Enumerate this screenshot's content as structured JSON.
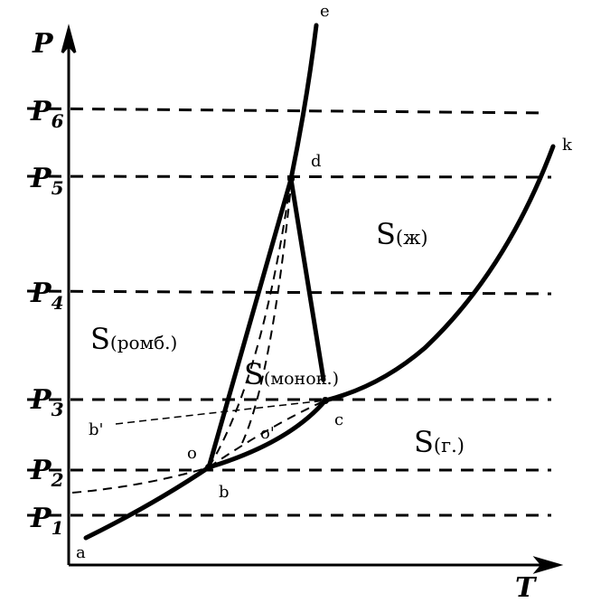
{
  "axes": {
    "y_label": "P",
    "x_label": "T"
  },
  "pressure_levels": [
    "P",
    "P",
    "P",
    "P",
    "P",
    "P"
  ],
  "pressure_subscripts": [
    "1",
    "2",
    "3",
    "4",
    "5",
    "6"
  ],
  "points": {
    "a": "a",
    "b": "b",
    "c": "c",
    "d": "d",
    "e": "e",
    "k": "k",
    "o": "o",
    "o_prime": "o'",
    "b_prime": "b'"
  },
  "regions": {
    "rhombic_main": "S",
    "rhombic_sub": "(ромб.)",
    "monoclinic_main": "S",
    "monoclinic_sub": "(монок.)",
    "liquid_main": "S",
    "liquid_sub": "(ж)",
    "gas_main": "S",
    "gas_sub": "(г.)"
  }
}
